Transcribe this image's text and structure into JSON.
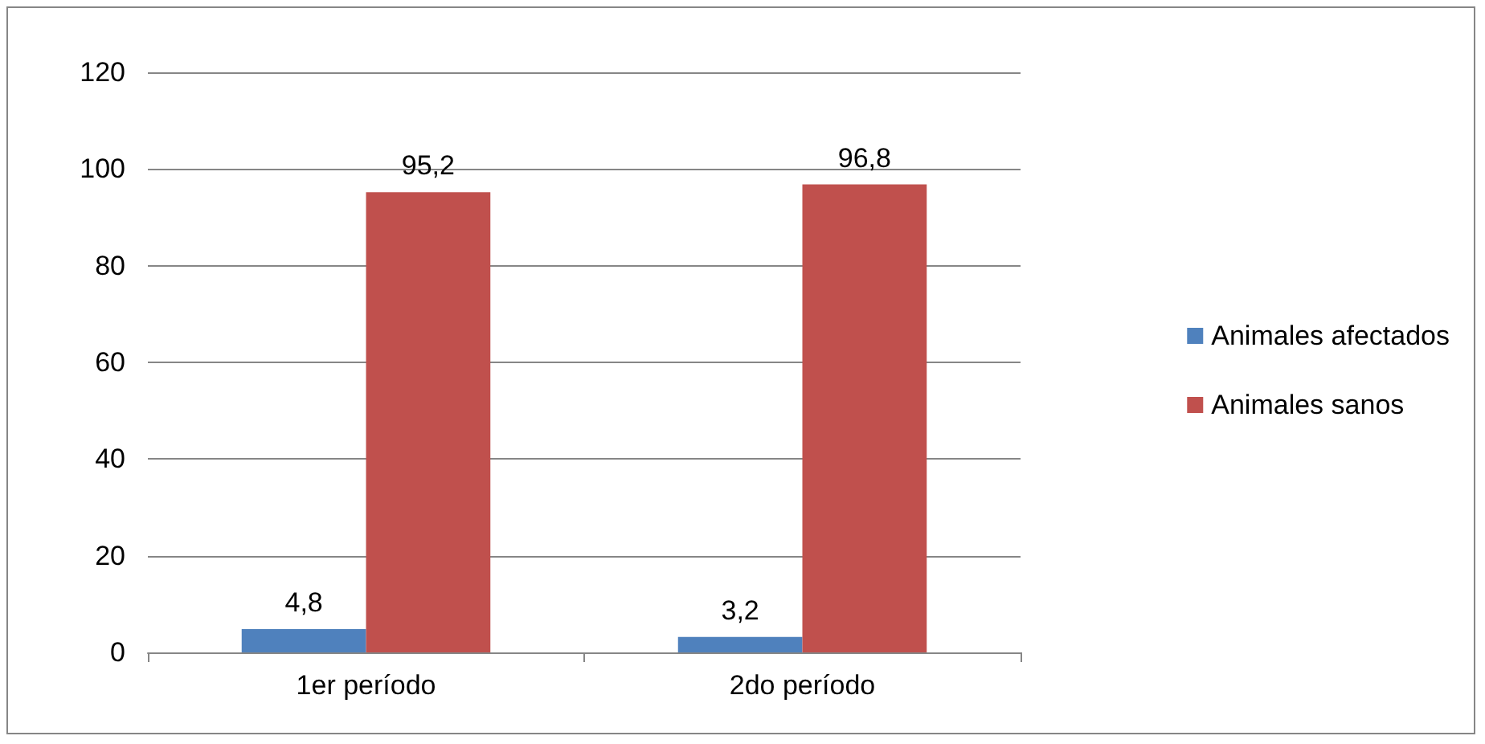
{
  "chart_data": {
    "type": "bar",
    "categories": [
      "1er período",
      "2do período"
    ],
    "series": [
      {
        "name": "Animales afectados",
        "color": "#4f81bd",
        "values": [
          4.8,
          3.2
        ],
        "value_labels": [
          "4,8",
          "3,2"
        ]
      },
      {
        "name": "Animales sanos",
        "color": "#c0504d",
        "values": [
          95.2,
          96.8
        ],
        "value_labels": [
          "95,2",
          "96,8"
        ]
      }
    ],
    "ylim": [
      0,
      120
    ],
    "yticks": [
      0,
      20,
      40,
      60,
      80,
      100,
      120
    ],
    "grid": "y",
    "legend": "right"
  }
}
